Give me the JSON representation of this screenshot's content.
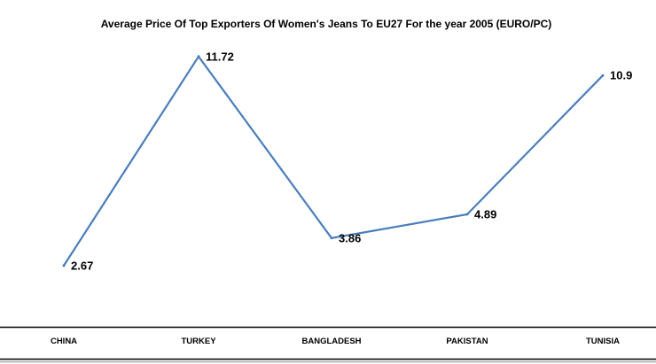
{
  "chart_data": {
    "type": "line",
    "title": "Average Price Of Top Exporters Of Women's Jeans To EU27 For the year 2005  (EURO/PC)",
    "xlabel": "",
    "ylabel": "",
    "categories": [
      "CHINA",
      "TURKEY",
      "BANGLADESH",
      "PAKISTAN",
      "TUNISIA"
    ],
    "series": [
      {
        "values": [
          2.67,
          11.72,
          3.86,
          4.89,
          10.9
        ],
        "labels": [
          "2.67",
          "11.72",
          "3.86",
          "4.89",
          "10.9"
        ]
      }
    ],
    "ylim": [
      0,
      12.5
    ],
    "grid": false,
    "legend": "none",
    "line_color": "#4a7ebb"
  }
}
